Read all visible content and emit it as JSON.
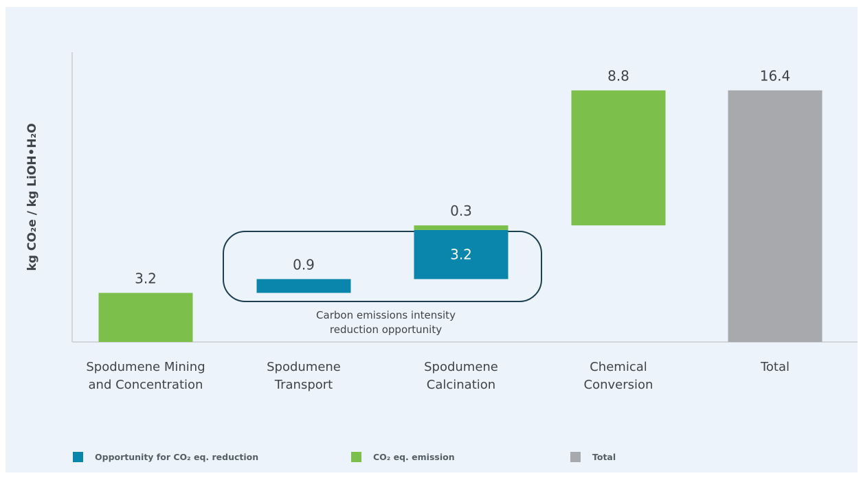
{
  "chart_data": {
    "type": "bar",
    "subtype": "waterfall",
    "ylabel": "kg CO₂e / kg LiOH•H₂O",
    "xlabel": "",
    "title": "",
    "ylim": [
      0,
      18.8
    ],
    "grid": false,
    "categories": [
      [
        "Spodumene Mining",
        "and Concentration"
      ],
      [
        "Spodumene",
        "Transport"
      ],
      [
        "Spodumene",
        "Calcination"
      ],
      [
        "Chemical",
        "Conversion"
      ],
      [
        "Total"
      ]
    ],
    "segments": [
      {
        "category": 0,
        "series": "CO₂ eq. emission",
        "start": 0,
        "value": 3.2,
        "label": "3.2",
        "label_position": "above"
      },
      {
        "category": 1,
        "series": "Opportunity for CO₂ eq. reduction",
        "start": 3.2,
        "value": 0.9,
        "label": "0.9",
        "label_position": "above"
      },
      {
        "category": 2,
        "series": "Opportunity for CO₂ eq. reduction",
        "start": 4.1,
        "value": 3.2,
        "label": "3.2",
        "label_position": "inside"
      },
      {
        "category": 2,
        "series": "CO₂ eq. emission",
        "start": 7.3,
        "value": 0.3,
        "label": "0.3",
        "label_position": "above"
      },
      {
        "category": 3,
        "series": "CO₂ eq. emission",
        "start": 7.6,
        "value": 8.8,
        "label": "8.8",
        "label_position": "above"
      },
      {
        "category": 4,
        "series": "Total",
        "start": 0,
        "value": 16.4,
        "label": "16.4",
        "label_position": "above"
      }
    ],
    "annotation": {
      "lines": [
        "Carbon emissions intensity",
        "reduction opportunity"
      ],
      "encloses_categories": [
        1,
        2
      ]
    },
    "legend": {
      "position": "bottom-left",
      "items": [
        {
          "name": "Opportunity for CO₂ eq. reduction",
          "color": "#0a86ad"
        },
        {
          "name": "CO₂ eq. emission",
          "color": "#7cc04b"
        },
        {
          "name": "Total",
          "color": "#a7a9ac"
        }
      ]
    },
    "colors": {
      "Opportunity for CO₂ eq. reduction": "#0a86ad",
      "CO₂ eq. emission": "#7cc04b",
      "Total": "#a7a9ac",
      "annotation_border": "#1d3f4f",
      "axis": "#c9ccd0",
      "text": "#3f4347",
      "background": "#ecf3fb"
    }
  }
}
